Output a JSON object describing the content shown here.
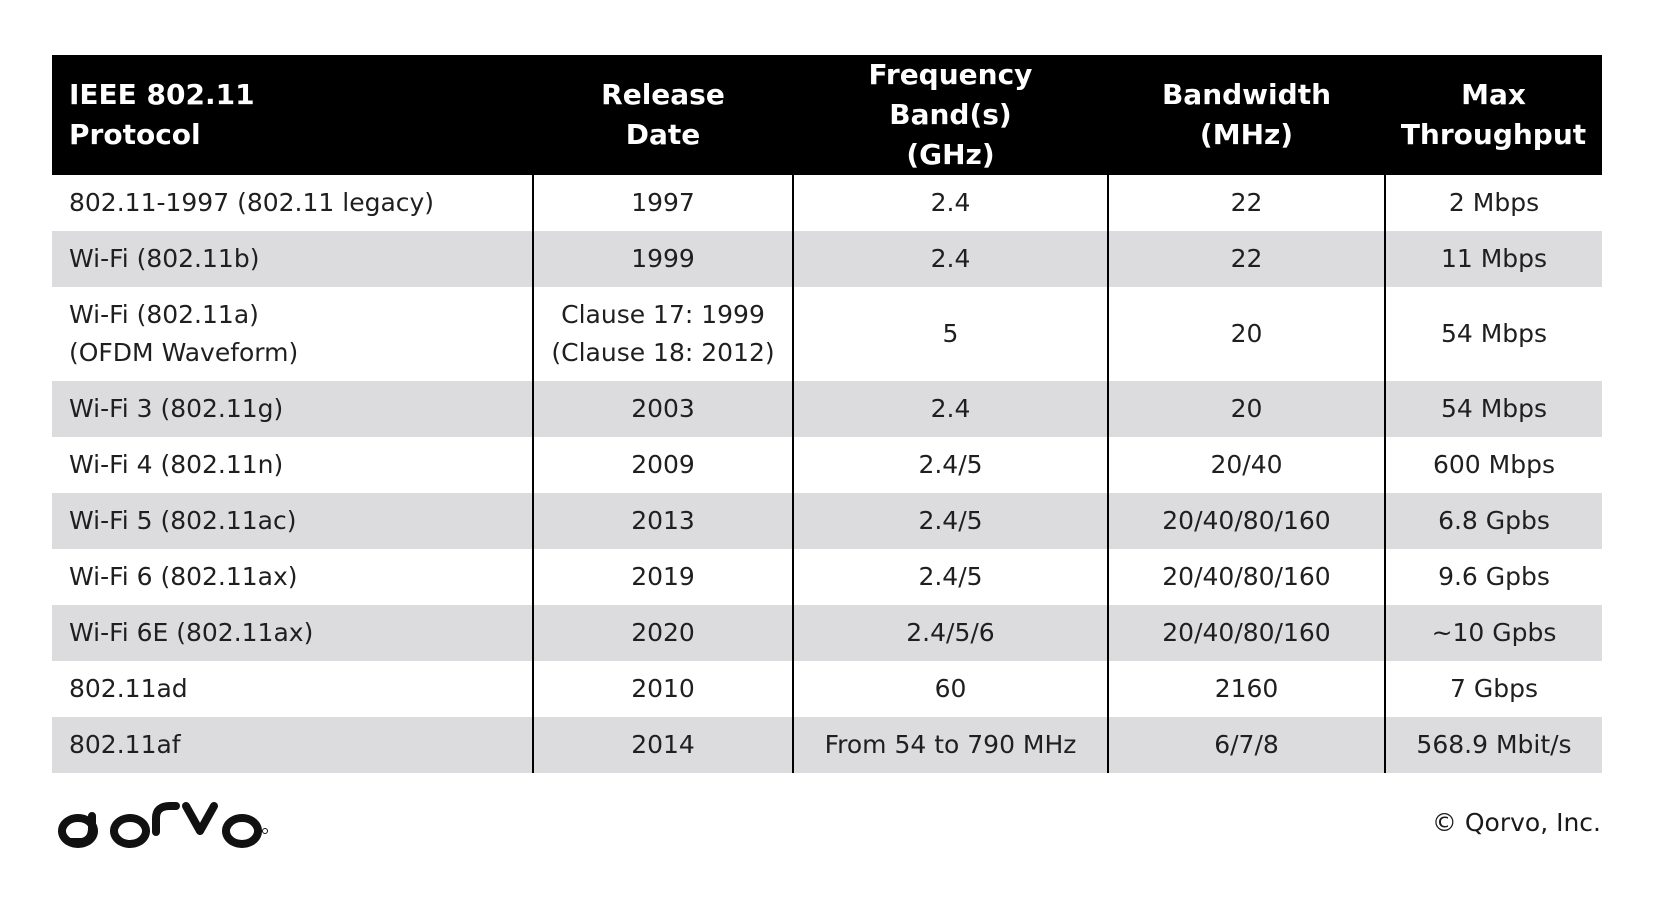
{
  "table": {
    "headers": [
      "IEEE 802.11\nProtocol",
      "Release\nDate",
      "Frequency Band(s)\n(GHz)",
      "Bandwidth\n(MHz)",
      "Max\nThroughput"
    ],
    "rows": [
      [
        "802.11-1997 (802.11 legacy)",
        "1997",
        "2.4",
        "22",
        "2 Mbps"
      ],
      [
        "Wi-Fi (802.11b)",
        "1999",
        "2.4",
        "22",
        "11 Mbps"
      ],
      [
        "Wi-Fi (802.11a)\n(OFDM Waveform)",
        "Clause 17: 1999\n(Clause 18: 2012)",
        "5",
        "20",
        "54 Mbps"
      ],
      [
        "Wi-Fi 3 (802.11g)",
        "2003",
        "2.4",
        "20",
        "54 Mbps"
      ],
      [
        "Wi-Fi 4 (802.11n)",
        "2009",
        "2.4/5",
        "20/40",
        "600 Mbps"
      ],
      [
        "Wi-Fi 5 (802.11ac)",
        "2013",
        "2.4/5",
        "20/40/80/160",
        "6.8 Gpbs"
      ],
      [
        "Wi-Fi 6 (802.11ax)",
        "2019",
        "2.4/5",
        "20/40/80/160",
        "9.6 Gpbs"
      ],
      [
        "Wi-Fi 6E (802.11ax)",
        "2020",
        "2.4/5/6",
        "20/40/80/160",
        "~10 Gpbs"
      ],
      [
        "802.11ad",
        "2010",
        "60",
        "2160",
        "7 Gbps"
      ],
      [
        "802.11af",
        "2014",
        "From 54 to 790 MHz",
        "6/7/8",
        "568.9 Mbit/s"
      ]
    ]
  },
  "footer": {
    "logo": "qorvo",
    "logo_icon": "qorvo-logo",
    "copyright": "© Qorvo, Inc."
  },
  "colors": {
    "header_bg": "#000000",
    "header_text": "#ffffff",
    "shaded_row": "#dcdcde",
    "divider": "#000000"
  }
}
